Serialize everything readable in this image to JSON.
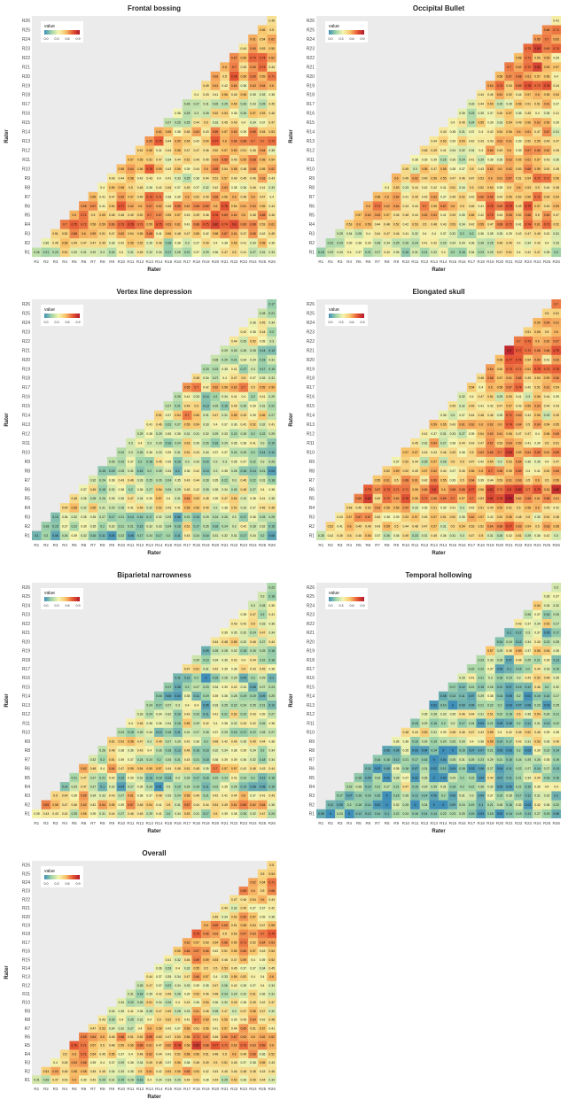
{
  "figure": {
    "x_label": "Rater",
    "y_label": "Rater",
    "legend_title": "value",
    "legend_ticks": [
      "0.0",
      "0.3",
      "0.6",
      "0.9"
    ],
    "colorscale": [
      "#3f8fb8",
      "#9fd3a8",
      "#f5f5b0",
      "#f9c46a",
      "#e85a34",
      "#b2182b"
    ]
  },
  "raters": [
    "R1",
    "R2",
    "R3",
    "R4",
    "R5",
    "R6",
    "R7",
    "R8",
    "R9",
    "R10",
    "R11",
    "R12",
    "R13",
    "R14",
    "R15",
    "R16",
    "R17",
    "R18",
    "R19",
    "R20",
    "R21",
    "R22",
    "R23",
    "R24",
    "R25",
    "R26"
  ],
  "chart_data": [
    {
      "type": "heatmap",
      "title": "Frontal bossing",
      "diag_first": [
        0.26,
        0.36,
        0.51,
        0.7,
        0.6,
        0.65,
        0.59,
        0.4,
        0.43,
        0.58,
        0.57,
        0.51,
        0.65,
        0.61,
        0.27,
        0.38,
        0.26,
        0.4,
        0.49,
        0.63,
        0.6,
        0.67,
        0.44,
        0.61,
        0.56,
        0.46
      ],
      "label_digits": 2
    },
    {
      "type": "heatmap",
      "title": "Occipital Bullet",
      "diag_first": [
        0.18,
        0.22,
        0.29,
        0.53,
        0.57,
        0.6,
        0.58,
        0.4,
        0.6,
        0.49,
        0.38,
        0.48,
        0.44,
        0.43,
        0.4,
        0.35,
        0.33,
        0.44,
        0.63,
        0.58,
        0.7,
        0.58,
        0.73,
        0.65,
        0.68,
        0.41
      ],
      "label_digits": 2
    },
    {
      "type": "heatmap",
      "title": "Vertex line depression",
      "diag_first": [
        0.1,
        0.18,
        0.13,
        0.49,
        0.48,
        0.37,
        0.32,
        0.15,
        0.26,
        0.24,
        0.3,
        0.29,
        0.41,
        0.51,
        0.27,
        0.25,
        0.65,
        0.48,
        0.23,
        0.28,
        0.29,
        0.44,
        0.42,
        0.36,
        0.28,
        0.17
      ],
      "label_digits": 2
    },
    {
      "type": "heatmap",
      "title": "Elongated skull",
      "diag_first": [
        0.28,
        0.52,
        0.43,
        0.48,
        0.69,
        0.75,
        0.55,
        0.52,
        0.37,
        0.57,
        0.45,
        0.42,
        0.59,
        0.36,
        0.45,
        0.32,
        0.54,
        0.48,
        0.64,
        0.58,
        0.9,
        0.7,
        0.51,
        0.59,
        0.5,
        0.7
      ],
      "label_digits": 2
    },
    {
      "type": "heatmap",
      "title": "Biparietal narrowness",
      "diag_first": [
        0.39,
        0.69,
        0.5,
        0.14,
        0.21,
        0.62,
        0.32,
        0.26,
        0.51,
        0.24,
        0.4,
        0.33,
        0.24,
        0.16,
        0.17,
        0.11,
        0.47,
        0.29,
        0.09,
        0.44,
        0.39,
        0.43,
        0.38,
        0.3,
        0.3,
        0.22
      ],
      "label_digits": 2
    },
    {
      "type": "heatmap",
      "title": "Temporal hollowing",
      "diag_first": [
        0.08,
        0.11,
        0.17,
        0.23,
        0.16,
        0.11,
        0.16,
        0.06,
        0.36,
        0.48,
        0.15,
        0.35,
        0.02,
        0.08,
        0.17,
        0.33,
        0.22,
        0.23,
        0.57,
        0.14,
        0.1,
        0.43,
        0.26,
        0.54,
        0.36,
        0.3
      ],
      "label_digits": 2
    },
    {
      "type": "heatmap",
      "title": "Overall",
      "diag_first": [
        0.31,
        0.53,
        0.4,
        0.5,
        0.76,
        0.69,
        0.47,
        0.43,
        0.34,
        0.34,
        0.31,
        0.28,
        0.44,
        0.36,
        0.41,
        0.55,
        0.62,
        0.75,
        0.6,
        0.46,
        0.44,
        0.47,
        0.69,
        0.62,
        0.5,
        0.5
      ],
      "label_digits": 2
    }
  ]
}
